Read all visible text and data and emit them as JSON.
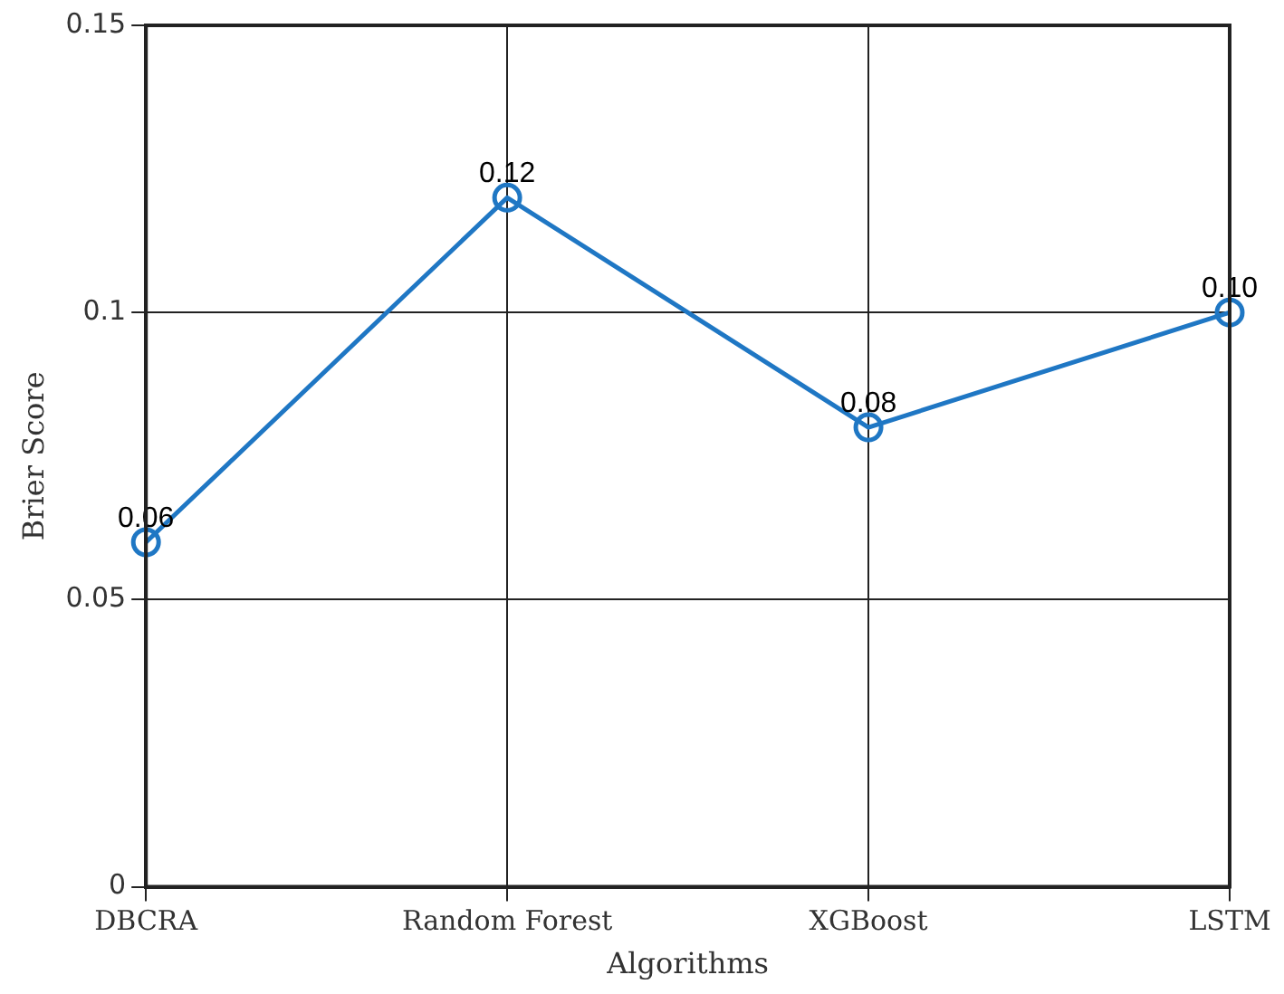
{
  "chart_data": {
    "type": "line",
    "xlabel": "Algorithms",
    "ylabel": "Brier Score",
    "categories": [
      "DBCRA",
      "Random Forest",
      "XGBoost",
      "LSTM"
    ],
    "series": [
      {
        "color": "#1f77c4",
        "values": [
          0.06,
          0.12,
          0.08,
          0.1
        ]
      }
    ],
    "value_labels": [
      "0.06",
      "0.12",
      "0.08",
      "0.10"
    ],
    "ylim": [
      0,
      0.15
    ],
    "yticks": [
      0,
      0.05,
      0.1,
      0.15
    ],
    "grid": true,
    "marker": "circle",
    "line_style": "solid",
    "legend": false
  }
}
